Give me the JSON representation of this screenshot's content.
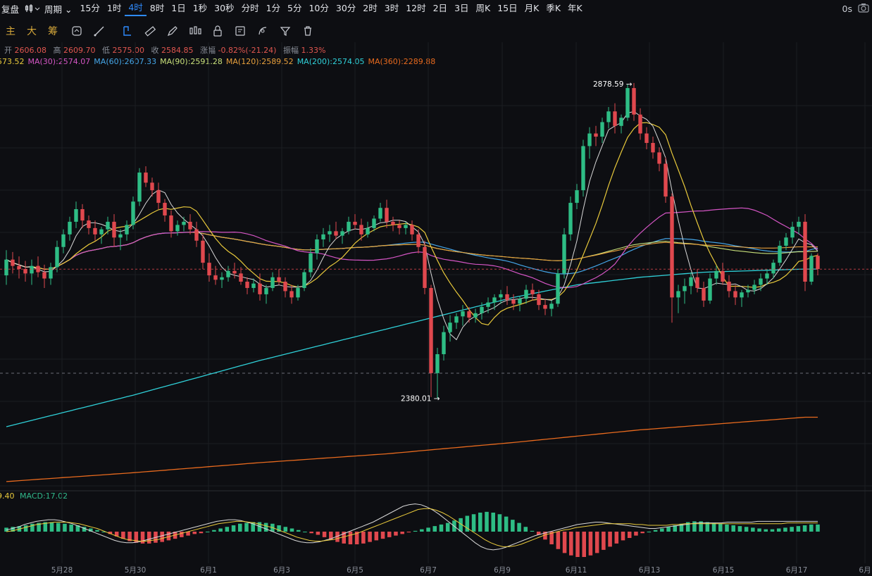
{
  "topbar": {
    "brand": "复盘",
    "period_label": "周期",
    "intervals": [
      "15分",
      "1时",
      "4时",
      "8时",
      "1日",
      "1秒",
      "30秒",
      "分时",
      "1分",
      "5分",
      "10分",
      "30分",
      "2时",
      "3时",
      "12时",
      "2日",
      "3日",
      "周K",
      "15日",
      "月K",
      "季K",
      "年K"
    ],
    "active_interval": "4时",
    "timer": "0s"
  },
  "toolbar": {
    "indicators": [
      "主",
      "大",
      "筹"
    ],
    "tools": [
      "magnet-icon",
      "cycle-icon",
      "draw-line-icon",
      "pen-icon",
      "brush-icon",
      "candle-icon",
      "lock-icon",
      "note-icon",
      "fib-icon",
      "filter-icon",
      "trash-icon"
    ]
  },
  "ohlc": {
    "open_label": "开",
    "open": "2606.08",
    "high_label": "高",
    "high": "2609.70",
    "low_label": "低",
    "low": "2575.00",
    "close_label": "收",
    "close": "2584.85",
    "change_label": "涨幅",
    "change": "-0.82%(-21.24)",
    "amp_label": "振幅",
    "amp": "1.33%"
  },
  "ma_legend": [
    {
      "text": "573.52",
      "color": "#e8c93b"
    },
    {
      "text": "MA(30):2574.07",
      "color": "#d455c4"
    },
    {
      "text": "MA(60):2607.33",
      "color": "#45a6e8"
    },
    {
      "text": "MA(90):2591.28",
      "color": "#c8e07a"
    },
    {
      "text": "MA(120):2589.52",
      "color": "#e8a03c"
    },
    {
      "text": "MA(200):2574.05",
      "color": "#2fd0d8"
    },
    {
      "text": "MA(360):2289.88",
      "color": "#e86a1e"
    }
  ],
  "macd_legend": {
    "left": "9.40",
    "macd": "MACD:17.02"
  },
  "annotations": {
    "high": "2878.59",
    "low": "2380.01"
  },
  "chart_data": {
    "type": "candlestick",
    "x_labels": [
      "5月28",
      "5月30",
      "6月1",
      "6月3",
      "6月5",
      "6月7",
      "6月9",
      "6月11",
      "6月13",
      "6月15",
      "6月17",
      "6月"
    ],
    "y_range": [
      2230,
      2900
    ],
    "last_price": 2584.85,
    "high_mark": 2878.59,
    "low_mark": 2380.01,
    "candles": [
      [
        2575,
        2615,
        2560,
        2600
      ],
      [
        2600,
        2612,
        2578,
        2590
      ],
      [
        2590,
        2605,
        2570,
        2585
      ],
      [
        2585,
        2598,
        2565,
        2578
      ],
      [
        2578,
        2600,
        2560,
        2590
      ],
      [
        2590,
        2605,
        2572,
        2580
      ],
      [
        2580,
        2592,
        2555,
        2570
      ],
      [
        2570,
        2595,
        2560,
        2588
      ],
      [
        2588,
        2630,
        2580,
        2620
      ],
      [
        2620,
        2648,
        2610,
        2640
      ],
      [
        2640,
        2668,
        2630,
        2660
      ],
      [
        2660,
        2692,
        2650,
        2680
      ],
      [
        2680,
        2688,
        2650,
        2662
      ],
      [
        2662,
        2670,
        2640,
        2650
      ],
      [
        2650,
        2662,
        2630,
        2640
      ],
      [
        2640,
        2652,
        2625,
        2648
      ],
      [
        2648,
        2668,
        2640,
        2660
      ],
      [
        2660,
        2672,
        2620,
        2635
      ],
      [
        2635,
        2648,
        2615,
        2640
      ],
      [
        2640,
        2662,
        2630,
        2655
      ],
      [
        2655,
        2700,
        2648,
        2692
      ],
      [
        2692,
        2745,
        2685,
        2738
      ],
      [
        2738,
        2748,
        2715,
        2722
      ],
      [
        2722,
        2730,
        2700,
        2710
      ],
      [
        2710,
        2722,
        2680,
        2690
      ],
      [
        2690,
        2696,
        2660,
        2670
      ],
      [
        2670,
        2678,
        2635,
        2645
      ],
      [
        2645,
        2662,
        2638,
        2655
      ],
      [
        2655,
        2668,
        2645,
        2660
      ],
      [
        2660,
        2672,
        2640,
        2648
      ],
      [
        2648,
        2660,
        2620,
        2630
      ],
      [
        2630,
        2640,
        2585,
        2595
      ],
      [
        2595,
        2610,
        2565,
        2575
      ],
      [
        2575,
        2590,
        2560,
        2568
      ],
      [
        2568,
        2580,
        2555,
        2572
      ],
      [
        2572,
        2590,
        2565,
        2582
      ],
      [
        2582,
        2595,
        2570,
        2578
      ],
      [
        2578,
        2588,
        2560,
        2565
      ],
      [
        2565,
        2572,
        2545,
        2555
      ],
      [
        2555,
        2570,
        2548,
        2562
      ],
      [
        2562,
        2578,
        2535,
        2545
      ],
      [
        2545,
        2560,
        2530,
        2555
      ],
      [
        2555,
        2580,
        2550,
        2572
      ],
      [
        2572,
        2585,
        2560,
        2565
      ],
      [
        2565,
        2572,
        2540,
        2550
      ],
      [
        2550,
        2560,
        2530,
        2540
      ],
      [
        2540,
        2560,
        2535,
        2555
      ],
      [
        2555,
        2585,
        2550,
        2580
      ],
      [
        2580,
        2618,
        2572,
        2610
      ],
      [
        2610,
        2640,
        2600,
        2632
      ],
      [
        2632,
        2650,
        2620,
        2640
      ],
      [
        2640,
        2655,
        2628,
        2645
      ],
      [
        2645,
        2660,
        2632,
        2638
      ],
      [
        2638,
        2650,
        2625,
        2645
      ],
      [
        2645,
        2668,
        2640,
        2660
      ],
      [
        2660,
        2672,
        2648,
        2655
      ],
      [
        2655,
        2665,
        2630,
        2640
      ],
      [
        2640,
        2660,
        2635,
        2650
      ],
      [
        2650,
        2670,
        2645,
        2665
      ],
      [
        2665,
        2690,
        2660,
        2682
      ],
      [
        2682,
        2695,
        2650,
        2660
      ],
      [
        2660,
        2668,
        2645,
        2655
      ],
      [
        2655,
        2662,
        2640,
        2650
      ],
      [
        2650,
        2660,
        2640,
        2655
      ],
      [
        2655,
        2662,
        2630,
        2640
      ],
      [
        2640,
        2648,
        2610,
        2620
      ],
      [
        2620,
        2630,
        2545,
        2555
      ],
      [
        2555,
        2560,
        2382,
        2420
      ],
      [
        2420,
        2460,
        2380,
        2450
      ],
      [
        2450,
        2495,
        2440,
        2485
      ],
      [
        2485,
        2512,
        2470,
        2500
      ],
      [
        2500,
        2515,
        2490,
        2510
      ],
      [
        2510,
        2528,
        2495,
        2518
      ],
      [
        2518,
        2525,
        2500,
        2508
      ],
      [
        2508,
        2522,
        2500,
        2515
      ],
      [
        2515,
        2532,
        2505,
        2525
      ],
      [
        2525,
        2540,
        2515,
        2532
      ],
      [
        2532,
        2545,
        2520,
        2540
      ],
      [
        2540,
        2552,
        2530,
        2545
      ],
      [
        2545,
        2558,
        2528,
        2536
      ],
      [
        2536,
        2545,
        2520,
        2530
      ],
      [
        2530,
        2542,
        2518,
        2538
      ],
      [
        2538,
        2560,
        2530,
        2552
      ],
      [
        2552,
        2562,
        2535,
        2545
      ],
      [
        2545,
        2552,
        2520,
        2528
      ],
      [
        2528,
        2538,
        2512,
        2522
      ],
      [
        2522,
        2535,
        2510,
        2530
      ],
      [
        2530,
        2585,
        2525,
        2578
      ],
      [
        2578,
        2650,
        2570,
        2640
      ],
      [
        2640,
        2700,
        2630,
        2690
      ],
      [
        2690,
        2720,
        2680,
        2710
      ],
      [
        2710,
        2790,
        2700,
        2780
      ],
      [
        2780,
        2810,
        2760,
        2800
      ],
      [
        2800,
        2812,
        2780,
        2795
      ],
      [
        2795,
        2825,
        2785,
        2818
      ],
      [
        2818,
        2842,
        2808,
        2835
      ],
      [
        2835,
        2848,
        2800,
        2812
      ],
      [
        2812,
        2830,
        2800,
        2825
      ],
      [
        2825,
        2878,
        2820,
        2872
      ],
      [
        2872,
        2880,
        2820,
        2830
      ],
      [
        2830,
        2840,
        2790,
        2800
      ],
      [
        2800,
        2810,
        2775,
        2785
      ],
      [
        2785,
        2795,
        2760,
        2770
      ],
      [
        2770,
        2778,
        2740,
        2752
      ],
      [
        2752,
        2762,
        2690,
        2700
      ],
      [
        2700,
        2705,
        2500,
        2540
      ],
      [
        2540,
        2560,
        2515,
        2550
      ],
      [
        2550,
        2570,
        2530,
        2558
      ],
      [
        2558,
        2580,
        2545,
        2572
      ],
      [
        2572,
        2585,
        2548,
        2555
      ],
      [
        2555,
        2565,
        2525,
        2535
      ],
      [
        2535,
        2578,
        2530,
        2570
      ],
      [
        2570,
        2590,
        2560,
        2582
      ],
      [
        2582,
        2595,
        2560,
        2565
      ],
      [
        2565,
        2575,
        2540,
        2550
      ],
      [
        2550,
        2560,
        2528,
        2540
      ],
      [
        2540,
        2552,
        2525,
        2548
      ],
      [
        2548,
        2560,
        2540,
        2552
      ],
      [
        2552,
        2568,
        2545,
        2560
      ],
      [
        2560,
        2578,
        2550,
        2570
      ],
      [
        2570,
        2585,
        2560,
        2578
      ],
      [
        2578,
        2600,
        2570,
        2595
      ],
      [
        2595,
        2630,
        2590,
        2622
      ],
      [
        2622,
        2642,
        2615,
        2635
      ],
      [
        2635,
        2660,
        2625,
        2652
      ],
      [
        2652,
        2668,
        2640,
        2660
      ],
      [
        2660,
        2672,
        2550,
        2565
      ],
      [
        2565,
        2610,
        2560,
        2606
      ],
      [
        2606,
        2610,
        2575,
        2585
      ]
    ],
    "ma_series": [
      {
        "name": "MA(360)",
        "color": "#e86a1e",
        "points": [
          [
            0,
            2248
          ],
          [
            20,
            2262
          ],
          [
            40,
            2278
          ],
          [
            60,
            2292
          ],
          [
            80,
            2310
          ],
          [
            100,
            2330
          ],
          [
            126,
            2350
          ]
        ]
      },
      {
        "name": "MA(200)",
        "color": "#2fd0d8",
        "points": [
          [
            0,
            2335
          ],
          [
            20,
            2385
          ],
          [
            40,
            2440
          ],
          [
            60,
            2490
          ],
          [
            80,
            2540
          ],
          [
            90,
            2560
          ],
          [
            100,
            2572
          ],
          [
            110,
            2580
          ],
          [
            126,
            2585
          ]
        ]
      }
    ],
    "macd": {
      "range": [
        -40,
        40
      ],
      "hist": [
        5,
        6,
        7,
        8,
        10,
        11,
        12,
        12,
        11,
        10,
        9,
        8,
        6,
        4,
        2,
        0,
        -3,
        -6,
        -9,
        -12,
        -14,
        -15,
        -15,
        -14,
        -13,
        -11,
        -9,
        -7,
        -5,
        -3,
        -2,
        0,
        2,
        4,
        6,
        8,
        10,
        11,
        12,
        12,
        11,
        10,
        8,
        6,
        4,
        2,
        0,
        -2,
        -4,
        -7,
        -10,
        -13,
        -15,
        -16,
        -16,
        -15,
        -13,
        -11,
        -9,
        -7,
        -5,
        -3,
        -1,
        1,
        3,
        5,
        7,
        9,
        11,
        14,
        17,
        20,
        22,
        24,
        25,
        24,
        22,
        19,
        15,
        11,
        6,
        1,
        -4,
        -10,
        -16,
        -22,
        -27,
        -30,
        -32,
        -32,
        -30,
        -27,
        -23,
        -19,
        -15,
        -11,
        -8,
        -5,
        -2,
        0,
        2,
        4,
        6,
        8,
        10,
        12,
        13,
        13,
        12,
        11,
        10,
        9,
        8,
        7,
        6,
        5,
        4,
        3,
        3,
        4,
        5,
        6,
        7,
        8,
        9,
        9
      ],
      "dif": [
        2,
        4,
        6,
        9,
        11,
        13,
        14,
        15,
        15,
        14,
        12,
        10,
        7,
        4,
        1,
        -2,
        -5,
        -8,
        -11,
        -13,
        -14,
        -14,
        -13,
        -11,
        -9,
        -7,
        -5,
        -3,
        -1,
        1,
        3,
        5,
        7,
        9,
        11,
        13,
        14,
        15,
        15,
        14,
        12,
        10,
        7,
        4,
        1,
        -2,
        -5,
        -8,
        -11,
        -13,
        -14,
        -14,
        -13,
        -11,
        -9,
        -6,
        -3,
        0,
        3,
        6,
        9,
        12,
        16,
        20,
        24,
        28,
        32,
        34,
        35,
        34,
        31,
        27,
        22,
        16,
        10,
        4,
        -2,
        -8,
        -14,
        -19,
        -22,
        -23,
        -22,
        -20,
        -17,
        -14,
        -11,
        -8,
        -5,
        -3,
        -1,
        1,
        3,
        5,
        7,
        9,
        10,
        11,
        12,
        12,
        11,
        10,
        9,
        8,
        7,
        6,
        5,
        4,
        4,
        5,
        6,
        7,
        8,
        9,
        10,
        11,
        11,
        11,
        11,
        11,
        12,
        12,
        12,
        12,
        12,
        13,
        13,
        13,
        13,
        13,
        13,
        13,
        13,
        13,
        13,
        13
      ],
      "dea": [
        0,
        1,
        3,
        5,
        7,
        9,
        10,
        11,
        12,
        12,
        12,
        11,
        10,
        8,
        6,
        4,
        1,
        -2,
        -5,
        -8,
        -10,
        -11,
        -12,
        -12,
        -11,
        -10,
        -8,
        -6,
        -4,
        -2,
        0,
        2,
        4,
        6,
        8,
        10,
        11,
        12,
        13,
        13,
        12,
        11,
        9,
        7,
        5,
        2,
        -1,
        -4,
        -7,
        -9,
        -11,
        -12,
        -12,
        -11,
        -10,
        -8,
        -6,
        -4,
        -2,
        1,
        4,
        7,
        10,
        13,
        16,
        19,
        22,
        25,
        28,
        29,
        29,
        27,
        24,
        20,
        15,
        10,
        5,
        0,
        -5,
        -10,
        -14,
        -17,
        -19,
        -19,
        -18,
        -16,
        -13,
        -10,
        -7,
        -4,
        -2,
        0,
        2,
        3,
        5,
        6,
        7,
        8,
        9,
        10,
        10,
        10,
        10,
        10,
        9,
        9,
        8,
        8,
        8,
        8,
        9,
        9,
        10,
        10,
        10,
        10,
        10,
        10,
        10,
        10,
        10,
        10,
        10,
        10,
        10,
        10,
        10,
        10,
        10,
        11,
        11,
        11,
        11,
        11,
        11
      ]
    }
  }
}
